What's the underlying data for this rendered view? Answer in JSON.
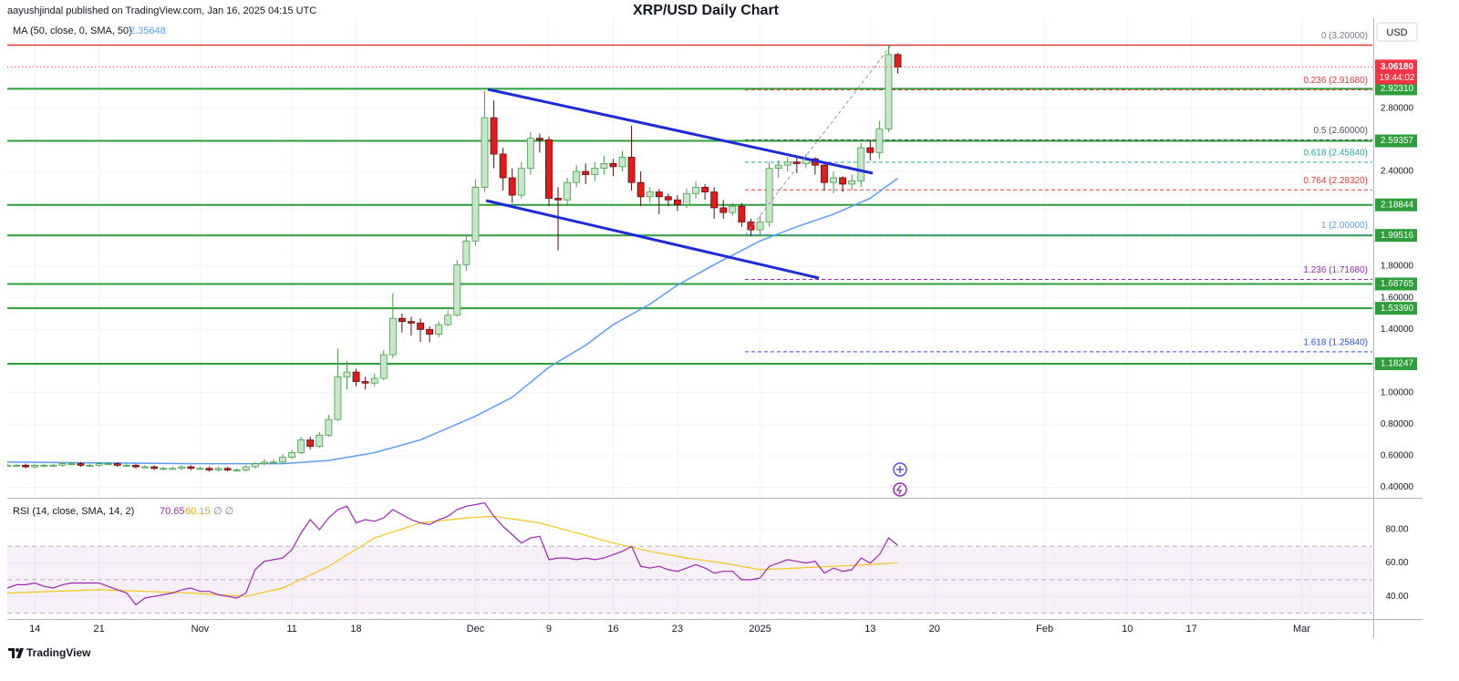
{
  "chart_data": {
    "type": "candlestick",
    "title": "XRP/USD Daily Chart",
    "caption": "aayushjindal published on TradingView.com, Jan 16, 2025 04:15 UTC",
    "currency": "USD",
    "brand": "TradingView",
    "grid": true,
    "up_color": "#c8e6c9",
    "up_border": "#43a047",
    "down_color": "#e21b1b",
    "down_border": "#5a0d0d",
    "x": [
      0,
      1,
      2,
      3,
      4,
      5,
      6,
      7,
      8,
      9,
      10,
      11,
      12,
      13,
      14,
      15,
      16,
      17,
      18,
      19,
      20,
      21,
      22,
      23,
      24,
      25,
      26,
      27,
      28,
      29,
      30,
      31,
      32,
      33,
      34,
      35,
      36,
      37,
      38,
      39,
      40,
      41,
      42,
      43,
      44,
      45,
      46,
      47,
      48,
      49,
      50,
      51,
      52,
      53,
      54,
      55,
      56,
      57,
      58,
      59,
      60,
      61,
      62,
      63,
      64,
      65,
      66,
      67,
      68,
      69,
      70,
      71,
      72,
      73,
      74,
      75,
      76,
      77,
      78,
      79,
      80,
      81,
      82,
      83,
      84,
      85,
      86,
      87,
      88,
      89,
      90,
      91,
      92,
      93,
      94,
      95,
      96,
      97
    ],
    "open": [
      0.54,
      0.54,
      0.54,
      0.53,
      0.54,
      0.54,
      0.54,
      0.55,
      0.55,
      0.54,
      0.54,
      0.55,
      0.55,
      0.54,
      0.54,
      0.53,
      0.53,
      0.52,
      0.52,
      0.52,
      0.53,
      0.52,
      0.52,
      0.51,
      0.52,
      0.51,
      0.51,
      0.53,
      0.55,
      0.56,
      0.56,
      0.59,
      0.62,
      0.7,
      0.66,
      0.73,
      0.83,
      1.1,
      1.13,
      1.07,
      1.06,
      1.09,
      1.24,
      1.47,
      1.45,
      1.44,
      1.4,
      1.37,
      1.43,
      1.49,
      1.81,
      1.96,
      2.3,
      2.74,
      2.51,
      2.36,
      2.25,
      2.42,
      2.61,
      2.6,
      2.23,
      2.22,
      2.33,
      2.4,
      2.38,
      2.42,
      2.45,
      2.43,
      2.49,
      2.33,
      2.24,
      2.27,
      2.24,
      2.22,
      2.19,
      2.26,
      2.3,
      2.27,
      2.17,
      2.14,
      2.18,
      2.08,
      2.03,
      2.08,
      2.42,
      2.44,
      2.46,
      2.45,
      2.48,
      2.44,
      2.33,
      2.36,
      2.32,
      2.34,
      2.55,
      2.52,
      2.67,
      3.14
    ],
    "high": [
      0.55,
      0.55,
      0.55,
      0.55,
      0.55,
      0.55,
      0.56,
      0.56,
      0.56,
      0.55,
      0.56,
      0.56,
      0.56,
      0.55,
      0.55,
      0.54,
      0.54,
      0.53,
      0.53,
      0.54,
      0.54,
      0.53,
      0.53,
      0.53,
      0.53,
      0.52,
      0.54,
      0.56,
      0.58,
      0.58,
      0.61,
      0.64,
      0.72,
      0.72,
      0.75,
      0.86,
      1.28,
      1.2,
      1.15,
      1.1,
      1.12,
      1.27,
      1.63,
      1.5,
      1.48,
      1.47,
      1.42,
      1.45,
      1.52,
      1.84,
      2.0,
      2.35,
      2.91,
      2.85,
      2.55,
      2.42,
      2.46,
      2.65,
      2.64,
      2.62,
      2.3,
      2.36,
      2.44,
      2.45,
      2.46,
      2.5,
      2.48,
      2.53,
      2.69,
      2.4,
      2.3,
      2.29,
      2.26,
      2.25,
      2.29,
      2.34,
      2.32,
      2.3,
      2.22,
      2.2,
      2.2,
      2.1,
      2.12,
      2.46,
      2.47,
      2.49,
      2.49,
      2.51,
      2.49,
      2.46,
      2.4,
      2.37,
      2.38,
      2.58,
      2.6,
      2.72,
      3.2,
      3.15
    ],
    "low": [
      0.53,
      0.53,
      0.52,
      0.52,
      0.53,
      0.53,
      0.53,
      0.54,
      0.53,
      0.53,
      0.53,
      0.54,
      0.53,
      0.53,
      0.52,
      0.52,
      0.51,
      0.51,
      0.51,
      0.51,
      0.51,
      0.51,
      0.5,
      0.5,
      0.5,
      0.5,
      0.5,
      0.52,
      0.54,
      0.55,
      0.55,
      0.58,
      0.61,
      0.64,
      0.65,
      0.72,
      0.82,
      1.02,
      1.04,
      1.02,
      1.04,
      1.08,
      1.22,
      1.38,
      1.36,
      1.32,
      1.32,
      1.35,
      1.42,
      1.48,
      1.77,
      1.93,
      2.27,
      2.42,
      2.28,
      2.2,
      2.23,
      2.38,
      2.52,
      2.18,
      1.9,
      2.18,
      2.3,
      2.32,
      2.34,
      2.38,
      2.37,
      2.4,
      2.28,
      2.18,
      2.2,
      2.13,
      2.18,
      2.15,
      2.17,
      2.23,
      2.22,
      2.1,
      2.1,
      2.12,
      2.05,
      1.99,
      2.0,
      2.05,
      2.36,
      2.4,
      2.39,
      2.42,
      2.38,
      2.28,
      2.26,
      2.27,
      2.28,
      2.3,
      2.47,
      2.48,
      2.65,
      3.02
    ],
    "close": [
      0.54,
      0.54,
      0.53,
      0.54,
      0.54,
      0.54,
      0.55,
      0.55,
      0.54,
      0.54,
      0.55,
      0.55,
      0.54,
      0.54,
      0.53,
      0.53,
      0.52,
      0.52,
      0.52,
      0.53,
      0.52,
      0.52,
      0.51,
      0.52,
      0.51,
      0.51,
      0.53,
      0.55,
      0.56,
      0.56,
      0.59,
      0.62,
      0.7,
      0.66,
      0.73,
      0.83,
      1.1,
      1.13,
      1.07,
      1.06,
      1.09,
      1.24,
      1.47,
      1.45,
      1.44,
      1.4,
      1.37,
      1.43,
      1.49,
      1.81,
      1.96,
      2.3,
      2.74,
      2.51,
      2.36,
      2.25,
      2.42,
      2.61,
      2.6,
      2.23,
      2.22,
      2.33,
      2.4,
      2.38,
      2.42,
      2.45,
      2.43,
      2.49,
      2.33,
      2.24,
      2.27,
      2.24,
      2.22,
      2.19,
      2.26,
      2.3,
      2.27,
      2.17,
      2.14,
      2.18,
      2.08,
      2.03,
      2.08,
      2.42,
      2.44,
      2.46,
      2.45,
      2.48,
      2.44,
      2.33,
      2.36,
      2.32,
      2.34,
      2.55,
      2.52,
      2.67,
      3.14,
      3.0618
    ],
    "xlim": [
      0,
      148.7
    ],
    "xticks": [
      {
        "value": 3,
        "label": "14"
      },
      {
        "value": 10,
        "label": "21"
      },
      {
        "value": 21,
        "label": "Nov"
      },
      {
        "value": 31,
        "label": "11"
      },
      {
        "value": 38,
        "label": "18"
      },
      {
        "value": 51,
        "label": "Dec"
      },
      {
        "value": 59,
        "label": "9"
      },
      {
        "value": 66,
        "label": "16"
      },
      {
        "value": 73,
        "label": "23"
      },
      {
        "value": 82,
        "label": "2025"
      },
      {
        "value": 94,
        "label": "13"
      },
      {
        "value": 101,
        "label": "20"
      },
      {
        "value": 113,
        "label": "Feb"
      },
      {
        "value": 122,
        "label": "10"
      },
      {
        "value": 129,
        "label": "17"
      },
      {
        "value": 141,
        "label": "Mar"
      }
    ],
    "ylim": [
      0.34,
      3.37
    ],
    "yticks": [
      {
        "value": 2.8,
        "label": "2.80000"
      },
      {
        "value": 2.4,
        "label": "2.40000"
      },
      {
        "value": 1.8,
        "label": "1.80000"
      },
      {
        "value": 1.6,
        "label": "1.60000"
      },
      {
        "value": 1.4,
        "label": "1.40000"
      },
      {
        "value": 1.0,
        "label": "1.00000"
      },
      {
        "value": 0.8,
        "label": "0.80000"
      },
      {
        "value": 0.6,
        "label": "0.60000"
      },
      {
        "value": 0.4,
        "label": "0.40000"
      }
    ],
    "ma": {
      "name": "MA (50, close, 0, SMA, 50)",
      "value": 2.35648,
      "color": "#5b9cf6",
      "x": [
        0,
        20,
        30,
        35,
        40,
        45,
        51,
        55,
        59,
        63,
        66,
        70,
        73,
        77,
        82,
        86,
        90,
        94,
        97
      ],
      "values": [
        0.56,
        0.55,
        0.55,
        0.57,
        0.62,
        0.7,
        0.85,
        0.97,
        1.16,
        1.3,
        1.43,
        1.56,
        1.68,
        1.81,
        1.96,
        2.05,
        2.13,
        2.23,
        2.35648
      ]
    },
    "level_color": "#2e9e3a",
    "levels": [
      {
        "value": 2.9231,
        "label": "2.92310"
      },
      {
        "value": 2.59357,
        "label": "2.59357"
      },
      {
        "value": 2.18844,
        "label": "2.18844"
      },
      {
        "value": 1.99516,
        "label": "1.99516"
      },
      {
        "value": 1.68765,
        "label": "1.68765"
      },
      {
        "value": 1.5339,
        "label": "1.53390"
      },
      {
        "value": 1.18247,
        "label": "1.18247"
      }
    ],
    "resistance_color": "#e53935",
    "fib": [
      {
        "label": "0 (3.20000)",
        "value": 3.2,
        "color": "#787b86"
      },
      {
        "label": "0.236 (2.91680)",
        "value": 2.9168,
        "color": "#e53935"
      },
      {
        "label": "0.5 (2.60000)",
        "value": 2.6,
        "color": "#4c525e"
      },
      {
        "label": "0.618 (2.45840)",
        "value": 2.4584,
        "color": "#26a69a"
      },
      {
        "label": "0.764 (2.28320)",
        "value": 2.2832,
        "color": "#e53935"
      },
      {
        "label": "1 (2.00000)",
        "value": 2.0,
        "color": "#5b9cf6"
      },
      {
        "label": "1.236 (1.71680)",
        "value": 1.7168,
        "color": "#9c27b0"
      },
      {
        "label": "1.618 (1.25840)",
        "value": 1.2584,
        "color": "#2a4fd6"
      }
    ],
    "last_price": {
      "value": 3.0618,
      "label": "3.06180",
      "countdown": "19:44:02",
      "color": "#f23645"
    },
    "rsi": {
      "name": "RSI (14, close, SMA, 14, 2)",
      "value": 70.65,
      "sma_value": 60.15,
      "flags": "∅ ∅",
      "color": "#9c27b0",
      "sma_color": "#f5c518",
      "ylim": [
        27,
        98
      ],
      "yticks": [
        {
          "value": 80,
          "label": "80.00"
        },
        {
          "value": 60,
          "label": "60.00"
        },
        {
          "value": 40,
          "label": "40.00"
        }
      ],
      "bands": [
        70,
        50,
        30
      ],
      "values": [
        45,
        47,
        47,
        48,
        46,
        45,
        47,
        48,
        48,
        48,
        48,
        46,
        44,
        42,
        35,
        39,
        40,
        41,
        42,
        44,
        45,
        43,
        43,
        41,
        40,
        39,
        42,
        56,
        61,
        62,
        63,
        68,
        78,
        86,
        80,
        87,
        92,
        94,
        84,
        86,
        85,
        87,
        92,
        89,
        86,
        84,
        83,
        86,
        88,
        92,
        94,
        95,
        96,
        88,
        82,
        77,
        72,
        75,
        76,
        62,
        63,
        63,
        62,
        63,
        62,
        63,
        65,
        67,
        70,
        58,
        57,
        58,
        56,
        55,
        57,
        59,
        57,
        54,
        55,
        55,
        50,
        50,
        51,
        58,
        60,
        62,
        61,
        60,
        61,
        54,
        57,
        55,
        56,
        63,
        60,
        65,
        75,
        70.65
      ],
      "sma_x": [
        0,
        10,
        20,
        26,
        30,
        35,
        40,
        45,
        50,
        53,
        58,
        62,
        66,
        70,
        74,
        78,
        82,
        86,
        90,
        94,
        97
      ],
      "sma_values": [
        42,
        44,
        42,
        40,
        45,
        58,
        75,
        84,
        87,
        88,
        84,
        78,
        72,
        67,
        63,
        60,
        56,
        57,
        58,
        59,
        60.15
      ]
    }
  }
}
